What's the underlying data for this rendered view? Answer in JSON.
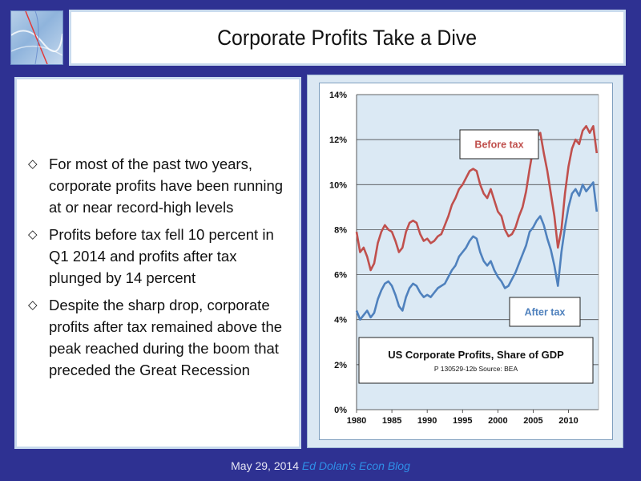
{
  "slide": {
    "title": "Corporate Profits Take a Dive",
    "bullets": [
      "For most of the past two years, corporate profits have been running at or near record-high levels",
      "Profits before tax fell 10 percent in Q1 2014 and profits after tax plunged by 14 percent",
      "Despite the sharp drop, corporate profits after tax remained above the peak reached during the boom that preceded the Great Recession"
    ],
    "bullet_icon": "diamond-outline-icon",
    "footer": {
      "date": "May 29, 2014",
      "blog": "Ed Dolan's Econ Blog"
    },
    "colors": {
      "background": "#2e3192",
      "before_tax": "#c0504d",
      "after_tax": "#4f81bd"
    }
  },
  "chart_data": {
    "type": "line",
    "title": "US Corporate Profits, Share of GDP",
    "subtitle": "P 130529-12b Source: BEA",
    "xlabel": "",
    "ylabel": "",
    "xlim": [
      1980,
      2014.25
    ],
    "ylim": [
      0,
      14
    ],
    "x_ticks": [
      1980,
      1985,
      1990,
      1995,
      2000,
      2005,
      2010
    ],
    "y_ticks": [
      "0%",
      "2%",
      "4%",
      "6%",
      "8%",
      "10%",
      "12%",
      "14%"
    ],
    "grid": true,
    "series": [
      {
        "name": "Before tax",
        "color": "#c0504d",
        "x": [
          1980,
          1980.5,
          1981,
          1981.5,
          1982,
          1982.5,
          1983,
          1983.5,
          1984,
          1984.5,
          1985,
          1985.5,
          1986,
          1986.5,
          1987,
          1987.5,
          1988,
          1988.5,
          1989,
          1989.5,
          1990,
          1990.5,
          1991,
          1991.5,
          1992,
          1992.5,
          1993,
          1993.5,
          1994,
          1994.5,
          1995,
          1995.5,
          1996,
          1996.5,
          1997,
          1997.5,
          1998,
          1998.5,
          1999,
          1999.5,
          2000,
          2000.5,
          2001,
          2001.5,
          2002,
          2002.5,
          2003,
          2003.5,
          2004,
          2004.5,
          2005,
          2005.5,
          2006,
          2006.5,
          2007,
          2007.5,
          2008,
          2008.5,
          2009,
          2009.5,
          2010,
          2010.5,
          2011,
          2011.5,
          2012,
          2012.5,
          2013,
          2013.5,
          2014
        ],
        "values": [
          7.9,
          7.0,
          7.2,
          6.8,
          6.2,
          6.5,
          7.4,
          7.9,
          8.2,
          8.0,
          7.9,
          7.5,
          7.0,
          7.2,
          7.9,
          8.3,
          8.4,
          8.3,
          7.8,
          7.5,
          7.6,
          7.4,
          7.5,
          7.7,
          7.8,
          8.2,
          8.6,
          9.1,
          9.4,
          9.8,
          10.0,
          10.3,
          10.6,
          10.7,
          10.6,
          10.0,
          9.6,
          9.4,
          9.8,
          9.3,
          8.8,
          8.6,
          8.0,
          7.7,
          7.8,
          8.1,
          8.6,
          9.0,
          9.7,
          10.7,
          11.6,
          12.1,
          12.3,
          11.4,
          10.6,
          9.6,
          8.6,
          7.2,
          8.0,
          9.6,
          10.8,
          11.6,
          12.0,
          11.8,
          12.4,
          12.6,
          12.3,
          12.6,
          11.4
        ]
      },
      {
        "name": "After tax",
        "color": "#4f81bd",
        "x": [
          1980,
          1980.5,
          1981,
          1981.5,
          1982,
          1982.5,
          1983,
          1983.5,
          1984,
          1984.5,
          1985,
          1985.5,
          1986,
          1986.5,
          1987,
          1987.5,
          1988,
          1988.5,
          1989,
          1989.5,
          1990,
          1990.5,
          1991,
          1991.5,
          1992,
          1992.5,
          1993,
          1993.5,
          1994,
          1994.5,
          1995,
          1995.5,
          1996,
          1996.5,
          1997,
          1997.5,
          1998,
          1998.5,
          1999,
          1999.5,
          2000,
          2000.5,
          2001,
          2001.5,
          2002,
          2002.5,
          2003,
          2003.5,
          2004,
          2004.5,
          2005,
          2005.5,
          2006,
          2006.5,
          2007,
          2007.5,
          2008,
          2008.5,
          2009,
          2009.5,
          2010,
          2010.5,
          2011,
          2011.5,
          2012,
          2012.5,
          2013,
          2013.5,
          2014
        ],
        "values": [
          4.4,
          4.0,
          4.2,
          4.4,
          4.1,
          4.3,
          4.9,
          5.3,
          5.6,
          5.7,
          5.5,
          5.1,
          4.6,
          4.4,
          5.0,
          5.4,
          5.6,
          5.5,
          5.2,
          5.0,
          5.1,
          5.0,
          5.2,
          5.4,
          5.5,
          5.6,
          5.9,
          6.2,
          6.4,
          6.8,
          7.0,
          7.2,
          7.5,
          7.7,
          7.6,
          7.0,
          6.6,
          6.4,
          6.6,
          6.2,
          5.9,
          5.7,
          5.4,
          5.5,
          5.8,
          6.1,
          6.5,
          6.9,
          7.3,
          7.9,
          8.1,
          8.4,
          8.6,
          8.2,
          7.6,
          7.1,
          6.4,
          5.5,
          7.0,
          8.1,
          9.0,
          9.6,
          9.8,
          9.5,
          10.0,
          9.7,
          9.9,
          10.1,
          8.8
        ]
      }
    ],
    "annotations": [
      {
        "text": "Before tax",
        "series": "Before tax"
      },
      {
        "text": "After tax",
        "series": "After tax"
      }
    ]
  }
}
